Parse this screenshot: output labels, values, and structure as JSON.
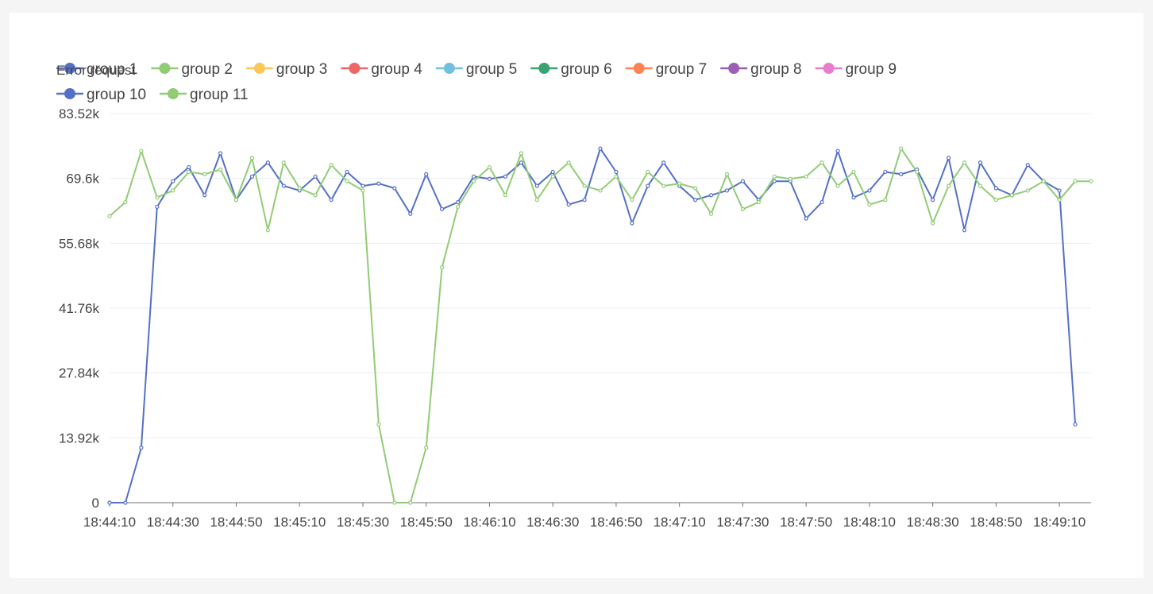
{
  "chart_data": {
    "type": "line",
    "title": "Error request",
    "xlabel": "",
    "ylabel": "",
    "ylim": [
      0,
      83520
    ],
    "y_ticks": [
      "0",
      "13.92k",
      "27.84k",
      "41.76k",
      "55.68k",
      "69.6k",
      "83.52k"
    ],
    "x_tick_labels": [
      "18:44:10",
      "18:44:30",
      "18:44:50",
      "18:45:10",
      "18:45:30",
      "18:45:50",
      "18:46:10",
      "18:46:30",
      "18:46:50",
      "18:47:10",
      "18:47:30",
      "18:47:50",
      "18:48:10",
      "18:48:30",
      "18:48:50",
      "18:49:10"
    ],
    "x_tick_every": 4,
    "grid": true,
    "legend_position": "top-left",
    "colors": [
      "#5470c6",
      "#91cc75",
      "#fac858",
      "#ee6666",
      "#73c0de",
      "#3ba272",
      "#fc8452",
      "#9a60b4",
      "#ea7ccc",
      "#5470c6",
      "#91cc75"
    ],
    "series": [
      {
        "name": "group 1",
        "values": []
      },
      {
        "name": "group 2",
        "values": []
      },
      {
        "name": "group 3",
        "values": []
      },
      {
        "name": "group 4",
        "values": []
      },
      {
        "name": "group 5",
        "values": []
      },
      {
        "name": "group 6",
        "values": []
      },
      {
        "name": "group 7",
        "values": []
      },
      {
        "name": "group 8",
        "values": []
      },
      {
        "name": "group 9",
        "values": []
      },
      {
        "name": "group 10",
        "values": [
          0,
          0,
          11800,
          63500,
          69000,
          72000,
          66000,
          75000,
          65000,
          70000,
          73000,
          68000,
          67000,
          70000,
          65000,
          71000,
          68000,
          68500,
          67500,
          62000,
          70500,
          63000,
          64500,
          70000,
          69500,
          70000,
          73000,
          68000,
          71000,
          64000,
          65000,
          76000,
          71000,
          60000,
          68000,
          73000,
          68000,
          65000,
          66000,
          67000,
          69000,
          65000,
          69000,
          69000,
          61000,
          64500,
          75500,
          65500,
          67000,
          71000,
          70500,
          71500,
          65000,
          74000,
          58500,
          73000,
          67500,
          66000,
          72500,
          69000,
          67000,
          16800
        ]
      },
      {
        "name": "group 11",
        "values": [
          61500,
          64500,
          75500,
          65500,
          67000,
          71000,
          70500,
          71500,
          65000,
          74000,
          58500,
          73000,
          67500,
          66000,
          72500,
          69000,
          67000,
          16800,
          0,
          0,
          11800,
          50500,
          63500,
          69000,
          72000,
          66000,
          75000,
          65000,
          70000,
          73000,
          68000,
          67000,
          70000,
          65000,
          71000,
          68000,
          68500,
          67500,
          62000,
          70500,
          63000,
          64500,
          70000,
          69500,
          70000,
          73000,
          68000,
          71000,
          64000,
          65000,
          76000,
          71000,
          60000,
          68000,
          73000,
          68000,
          65000,
          66000,
          67000,
          69000,
          65000,
          69000,
          69000
        ]
      }
    ]
  }
}
